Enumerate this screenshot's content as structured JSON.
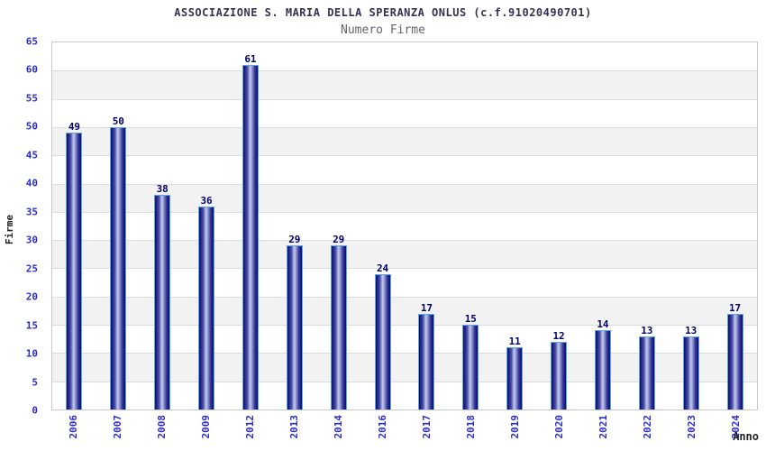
{
  "chart_data": {
    "type": "bar",
    "title": "ASSOCIAZIONE S. MARIA DELLA SPERANZA ONLUS (c.f.91020490701)",
    "subtitle": "Numero Firme",
    "xlabel": "Anno",
    "ylabel": "Firme",
    "categories": [
      "2006",
      "2007",
      "2008",
      "2009",
      "2012",
      "2013",
      "2014",
      "2016",
      "2017",
      "2018",
      "2019",
      "2020",
      "2021",
      "2022",
      "2023",
      "2024"
    ],
    "values": [
      49,
      50,
      38,
      36,
      61,
      29,
      29,
      24,
      17,
      15,
      11,
      12,
      14,
      13,
      13,
      17
    ],
    "ylim": [
      0,
      65
    ],
    "ytick_step": 5,
    "yticks": [
      0,
      5,
      10,
      15,
      20,
      25,
      30,
      35,
      40,
      45,
      50,
      55,
      60,
      65
    ],
    "grid": "horizontal-bands",
    "legend_position": "none",
    "colors": {
      "bar_dark": "#0f0f6e",
      "bar_highlight": "#c3c9ec",
      "bar_border": "#5aa7e8",
      "value_label": "#000066",
      "tick_label": "#2d2dcc",
      "title": "#333355",
      "subtitle": "#666666",
      "axis_title": "#222222",
      "band_white": "#ffffff",
      "band_gray": "#f2f2f2",
      "gridline": "#dcdcdc",
      "frame": "#c8c8c8"
    }
  }
}
